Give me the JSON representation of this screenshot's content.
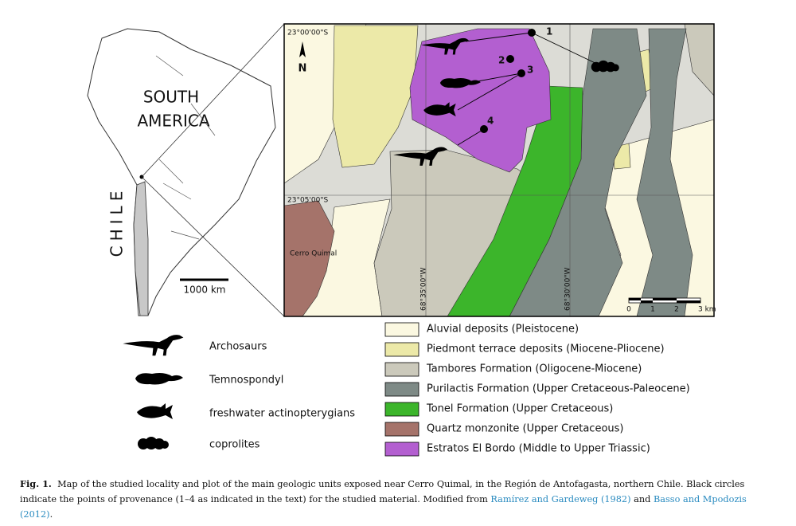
{
  "overview_map": {
    "region_label": "SOUTH AMERICA",
    "country_label": "CHILE",
    "scale_bar": "1000 km"
  },
  "detail_map": {
    "lat_labels": [
      "23°00'00\"S",
      "23°05'00\"S"
    ],
    "lon_labels": [
      "68°35'00\"W",
      "68°30'00\"W"
    ],
    "north": "N",
    "place_label": "Cerro Quimal",
    "localities": [
      "1",
      "2",
      "3",
      "4"
    ],
    "scale_labels": [
      "0",
      "1",
      "2",
      "3 km"
    ]
  },
  "fossil_legend": [
    "Archosaurs",
    "Temnospondyl",
    "freshwater actinopterygians",
    "coprolites"
  ],
  "unit_legend": [
    {
      "label": "Aluvial deposits (Pleistocene)",
      "color": "#fbf8e1"
    },
    {
      "label": "Piedmont terrace deposits (Miocene-Pliocene)",
      "color": "#ece9a8"
    },
    {
      "label": "Tambores Formation (Oligocene-Miocene)",
      "color": "#cbc9bb"
    },
    {
      "label": "Purilactis Formation (Upper Cretaceous-Paleocene)",
      "color": "#7e8a86"
    },
    {
      "label": "Tonel Formation (Upper Cretaceous)",
      "color": "#3cb52b"
    },
    {
      "label": "Quartz monzonite (Upper Cretaceous)",
      "color": "#a5736a"
    },
    {
      "label": "Estratos El Bordo (Middle to Upper Triassic)",
      "color": "#b35fd0"
    }
  ],
  "caption": {
    "label": "Fig. 1.",
    "text": "Map of the studied locality and plot of the main geologic units exposed near Cerro Quimal, in the Región de Antofagasta, northern Chile. Black circles indicate the points of provenance (1–4 as indicated in the text) for the studied material. Modified from",
    "ref1": "Ramírez and Gardeweg (1982)",
    "joiner": "and",
    "ref2": "Basso and Mpodozis (2012)",
    "end": "."
  }
}
